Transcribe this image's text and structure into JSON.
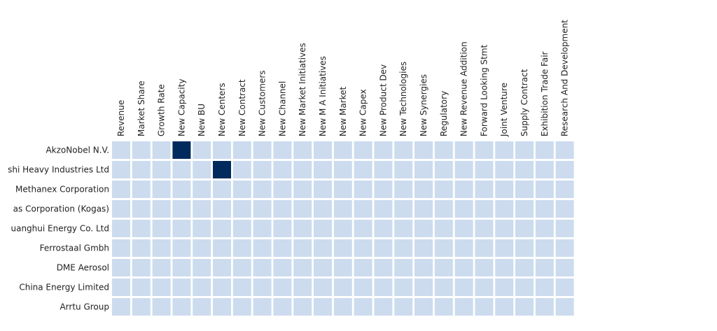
{
  "chart_data": {
    "type": "heatmap",
    "x": [
      "Revenue",
      "Market Share",
      "Growth Rate",
      "New Capacity",
      "New BU",
      "New Centers",
      "New Contract",
      "New Customers",
      "New Channel",
      "New Market Initiatives",
      "New M A Initiatives",
      "New Market",
      "New Capex",
      "New Product Dev",
      "New Technologies",
      "New Synergies",
      "Regulatory",
      "New Revenue Addition",
      "Forward Looking Stmt",
      "Joint Venture",
      "Supply Contract",
      "Exhibition Trade Fair",
      "Research And Development"
    ],
    "y": [
      "AkzoNobel N.V.",
      "shi Heavy Industries Ltd",
      "Methanex Corporation",
      "as Corporation (Kogas)",
      "uanghui Energy Co. Ltd",
      "Ferrostaal Gmbh",
      "DME Aerosol",
      "China Energy Limited",
      "Arrtu Group"
    ],
    "values": [
      [
        0,
        0,
        0,
        1,
        0,
        0,
        0,
        0,
        0,
        0,
        0,
        0,
        0,
        0,
        0,
        0,
        0,
        0,
        0,
        0,
        0,
        0,
        0
      ],
      [
        0,
        0,
        0,
        0,
        0,
        1,
        0,
        0,
        0,
        0,
        0,
        0,
        0,
        0,
        0,
        0,
        0,
        0,
        0,
        0,
        0,
        0,
        0
      ],
      [
        0,
        0,
        0,
        0,
        0,
        0,
        0,
        0,
        0,
        0,
        0,
        0,
        0,
        0,
        0,
        0,
        0,
        0,
        0,
        0,
        0,
        0,
        0
      ],
      [
        0,
        0,
        0,
        0,
        0,
        0,
        0,
        0,
        0,
        0,
        0,
        0,
        0,
        0,
        0,
        0,
        0,
        0,
        0,
        0,
        0,
        0,
        0
      ],
      [
        0,
        0,
        0,
        0,
        0,
        0,
        0,
        0,
        0,
        0,
        0,
        0,
        0,
        0,
        0,
        0,
        0,
        0,
        0,
        0,
        0,
        0,
        0
      ],
      [
        0,
        0,
        0,
        0,
        0,
        0,
        0,
        0,
        0,
        0,
        0,
        0,
        0,
        0,
        0,
        0,
        0,
        0,
        0,
        0,
        0,
        0,
        0
      ],
      [
        0,
        0,
        0,
        0,
        0,
        0,
        0,
        0,
        0,
        0,
        0,
        0,
        0,
        0,
        0,
        0,
        0,
        0,
        0,
        0,
        0,
        0,
        0
      ],
      [
        0,
        0,
        0,
        0,
        0,
        0,
        0,
        0,
        0,
        0,
        0,
        0,
        0,
        0,
        0,
        0,
        0,
        0,
        0,
        0,
        0,
        0,
        0
      ],
      [
        0,
        0,
        0,
        0,
        0,
        0,
        0,
        0,
        0,
        0,
        0,
        0,
        0,
        0,
        0,
        0,
        0,
        0,
        0,
        0,
        0,
        0,
        0
      ]
    ],
    "colors": [
      "#ccdcee",
      "#002b5c"
    ]
  }
}
